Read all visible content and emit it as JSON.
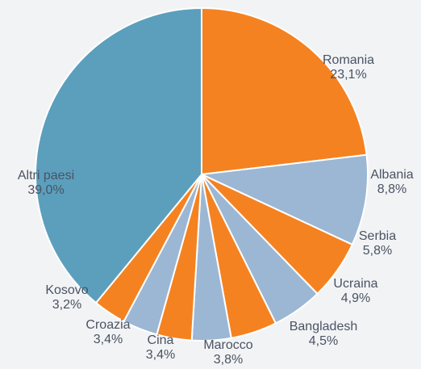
{
  "chart_data": {
    "type": "pie",
    "title": "",
    "start": "top",
    "direction": "clockwise",
    "legend": "none",
    "slices": [
      {
        "label": "Romania",
        "value": 23.1,
        "display": "23,1%",
        "color": "#f58220"
      },
      {
        "label": "Albania",
        "value": 8.8,
        "display": "8,8%",
        "color": "#9bb7d4"
      },
      {
        "label": "Serbia",
        "value": 5.8,
        "display": "5,8%",
        "color": "#f58220"
      },
      {
        "label": "Ucraina",
        "value": 4.9,
        "display": "4,9%",
        "color": "#9bb7d4"
      },
      {
        "label": "Bangladesh",
        "value": 4.5,
        "display": "4,5%",
        "color": "#f58220"
      },
      {
        "label": "Marocco",
        "value": 3.8,
        "display": "3,8%",
        "color": "#9bb7d4"
      },
      {
        "label": "Cina",
        "value": 3.4,
        "display": "3,4%",
        "color": "#f58220"
      },
      {
        "label": "Croazia",
        "value": 3.4,
        "display": "3,4%",
        "color": "#9bb7d4"
      },
      {
        "label": "Kosovo",
        "value": 3.2,
        "display": "3,2%",
        "color": "#f58220"
      },
      {
        "label": "Altri paesi",
        "value": 39.0,
        "display": "39,0%",
        "color": "#5b9fbd"
      }
    ]
  }
}
